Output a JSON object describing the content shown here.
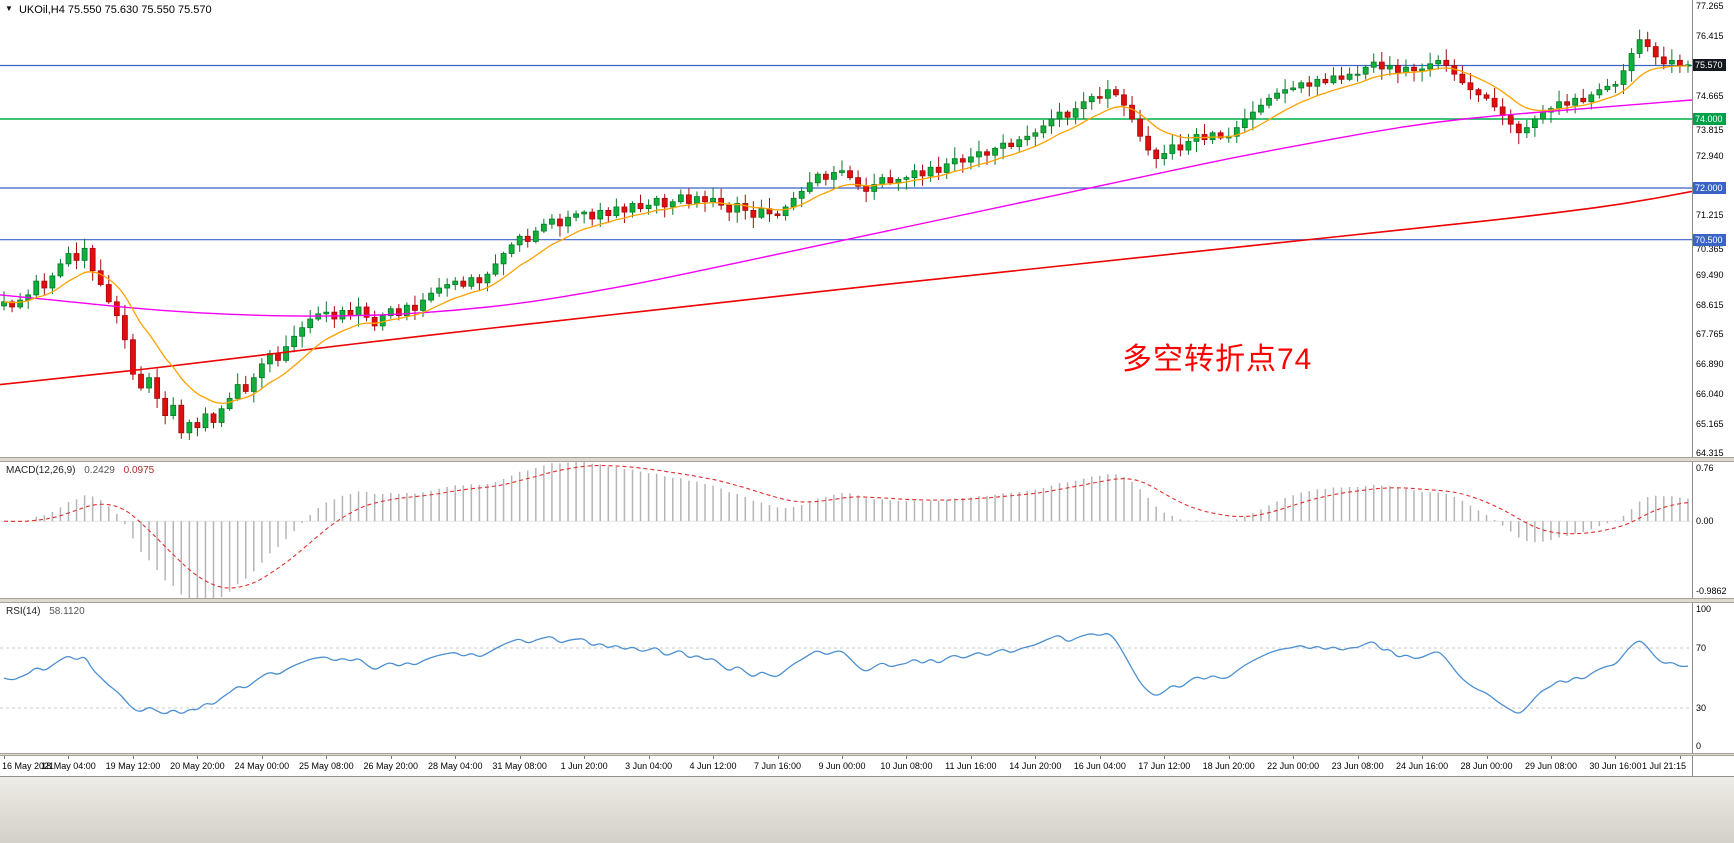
{
  "header": {
    "symbol": "UKOil,H4",
    "ohlc": "75.550 75.630 75.550 75.570"
  },
  "chart_data": {
    "type": "candlestick",
    "symbol": "UKOil",
    "timeframe": "H4",
    "title": "UKOil,H4",
    "current_ohlc": {
      "open": "75.550",
      "high": "75.630",
      "low": "75.550",
      "close": "75.570"
    },
    "price_range": [
      64.2,
      77.45
    ],
    "price_axis_labels": [
      77.265,
      76.415,
      74.665,
      73.815,
      72.94,
      71.215,
      70.365,
      69.49,
      68.615,
      67.765,
      66.89,
      66.04,
      65.165,
      64.315
    ],
    "x_labels": [
      "16 May 2021",
      "18 May 04:00",
      "19 May 12:00",
      "20 May 20:00",
      "24 May 00:00",
      "25 May 08:00",
      "26 May 20:00",
      "28 May 04:00",
      "31 May 08:00",
      "1 Jun 20:00",
      "3 Jun 04:00",
      "4 Jun 12:00",
      "7 Jun 16:00",
      "9 Jun 00:00",
      "10 Jun 08:00",
      "11 Jun 16:00",
      "14 Jun 20:00",
      "16 Jun 04:00",
      "17 Jun 12:00",
      "18 Jun 20:00",
      "22 Jun 00:00",
      "23 Jun 08:00",
      "24 Jun 16:00",
      "28 Jun 00:00",
      "29 Jun 08:00",
      "30 Jun 16:00",
      "1 Jul 21:15"
    ],
    "bars_per_label": 8,
    "closes": [
      68.7,
      68.55,
      68.75,
      68.9,
      69.3,
      69.1,
      69.45,
      69.8,
      70.1,
      69.9,
      70.25,
      69.6,
      69.2,
      68.7,
      68.3,
      67.6,
      66.6,
      66.2,
      66.5,
      65.9,
      65.4,
      65.7,
      64.9,
      65.2,
      65.05,
      65.45,
      65.2,
      65.6,
      65.9,
      66.3,
      66.1,
      66.5,
      66.9,
      67.2,
      67.0,
      67.4,
      67.7,
      67.95,
      68.2,
      68.35,
      68.4,
      68.2,
      68.45,
      68.3,
      68.55,
      68.25,
      68.0,
      68.3,
      68.5,
      68.3,
      68.6,
      68.45,
      68.75,
      68.95,
      69.1,
      69.2,
      69.3,
      69.15,
      69.4,
      69.25,
      69.5,
      69.8,
      70.1,
      70.35,
      70.6,
      70.45,
      70.75,
      70.95,
      71.1,
      70.9,
      71.15,
      71.25,
      71.3,
      71.1,
      71.35,
      71.2,
      71.45,
      71.3,
      71.55,
      71.4,
      71.5,
      71.7,
      71.45,
      71.6,
      71.8,
      71.55,
      71.75,
      71.6,
      71.7,
      71.5,
      71.3,
      71.55,
      71.35,
      71.15,
      71.4,
      71.25,
      71.2,
      71.45,
      71.7,
      71.9,
      72.15,
      72.4,
      72.25,
      72.45,
      72.5,
      72.3,
      72.05,
      71.9,
      72.1,
      72.3,
      72.15,
      72.25,
      72.3,
      72.5,
      72.35,
      72.6,
      72.45,
      72.7,
      72.85,
      72.75,
      72.9,
      73.05,
      72.95,
      73.15,
      73.3,
      73.2,
      73.4,
      73.5,
      73.6,
      73.8,
      74.0,
      74.2,
      74.05,
      74.3,
      74.5,
      74.65,
      74.6,
      74.85,
      74.7,
      74.4,
      74.0,
      73.5,
      73.1,
      72.85,
      73.0,
      73.25,
      73.1,
      73.35,
      73.55,
      73.4,
      73.6,
      73.45,
      73.5,
      73.75,
      74.0,
      74.2,
      74.4,
      74.6,
      74.75,
      74.85,
      74.9,
      75.05,
      74.95,
      75.15,
      75.05,
      75.25,
      75.15,
      75.3,
      75.3,
      75.5,
      75.65,
      75.45,
      75.55,
      75.35,
      75.5,
      75.4,
      75.45,
      75.6,
      75.7,
      75.55,
      75.3,
      75.05,
      74.85,
      74.7,
      74.6,
      74.35,
      74.1,
      73.85,
      73.6,
      73.75,
      74.0,
      74.2,
      74.3,
      74.5,
      74.4,
      74.6,
      74.5,
      74.7,
      74.85,
      74.95,
      75.0,
      75.4,
      75.9,
      76.3,
      76.1,
      75.8,
      75.6,
      75.7,
      75.55,
      75.57
    ],
    "candle_colors": {
      "up_fill": "#0FAF3C",
      "up_stroke": "#067A26",
      "down_fill": "#E00F0F",
      "down_stroke": "#A50909"
    },
    "horizontal_lines": [
      {
        "value": 75.55,
        "color": "#3A63C8",
        "tag": null,
        "tag_bg": null
      },
      {
        "value": 74.0,
        "color": "#00B14A",
        "tag": "74.000",
        "tag_bg": "#00A049"
      },
      {
        "value": 72.0,
        "color": "#3A63C8",
        "tag": "72.000",
        "tag_bg": "#3A63C8"
      },
      {
        "value": 70.5,
        "color": "#3A63C8",
        "tag": "70.500",
        "tag_bg": "#3A63C8"
      }
    ],
    "current_price": {
      "value": 75.57,
      "tag": "75.570",
      "tag_bg": "#14181F"
    },
    "moving_averages": {
      "fast": {
        "color": "#FFA200",
        "period": 10
      },
      "mid": {
        "color": "#F400F4",
        "points": [
          68.9,
          68.72,
          68.52,
          68.38,
          68.3,
          68.28,
          68.32,
          68.45,
          68.65,
          68.95,
          69.3,
          69.7,
          70.1,
          70.5,
          70.9,
          71.3,
          71.7,
          72.1,
          72.5,
          72.9,
          73.25,
          73.6,
          73.9,
          74.1,
          74.25,
          74.4,
          74.55
        ]
      },
      "slow": {
        "color": "#EE0000",
        "points": [
          66.3,
          66.5,
          66.7,
          66.92,
          67.15,
          67.38,
          67.6,
          67.82,
          68.03,
          68.24,
          68.45,
          68.66,
          68.87,
          69.08,
          69.28,
          69.48,
          69.68,
          69.88,
          70.08,
          70.28,
          70.48,
          70.68,
          70.88,
          71.08,
          71.3,
          71.55,
          71.9
        ]
      }
    },
    "indicators": {
      "macd": {
        "label": "MACD(12,26,9)",
        "value_main": "0.2429",
        "value_signal": "0.0975",
        "params": [
          12,
          26,
          9
        ],
        "range": [
          -0.9862,
          0.76
        ],
        "axis_labels": [
          "0.76",
          "0.00",
          "-0.9862"
        ],
        "histogram_color": "#B5B5B5",
        "signal_color": "#E03030"
      },
      "rsi": {
        "label": "RSI(14)",
        "value": "58.1120",
        "period": 14,
        "range": [
          0,
          100
        ],
        "levels": [
          70,
          30
        ],
        "axis_labels": [
          "100",
          "70",
          "30",
          "0"
        ],
        "color": "#4C8FD0"
      }
    },
    "annotation": {
      "text": "多空转折点74",
      "color": "#FE0000"
    }
  }
}
